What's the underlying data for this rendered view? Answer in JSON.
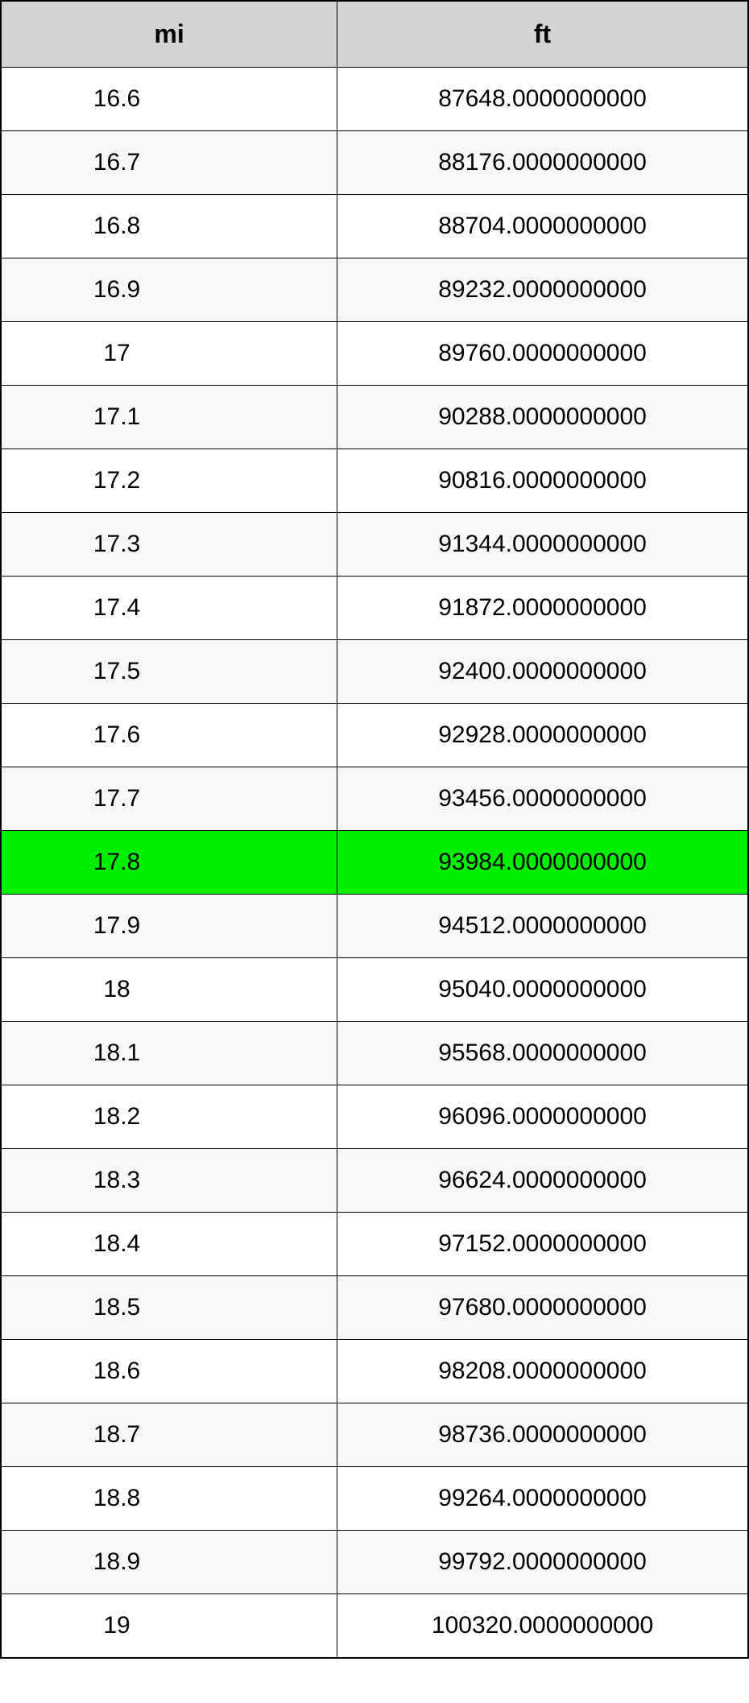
{
  "table": {
    "type": "table",
    "header_bg": "#d3d3d3",
    "border_color": "#000000",
    "row_even_bg": "#ffffff",
    "row_odd_bg": "#f7f7f7",
    "highlight_bg": "#00ee00",
    "font_size_header": 32,
    "font_size_cell": 30,
    "columns": [
      {
        "label": "mi",
        "key": "mi"
      },
      {
        "label": "ft",
        "key": "ft"
      }
    ],
    "highlight_index": 12,
    "rows": [
      {
        "mi": "16.6",
        "ft": "87648.0000000000"
      },
      {
        "mi": "16.7",
        "ft": "88176.0000000000"
      },
      {
        "mi": "16.8",
        "ft": "88704.0000000000"
      },
      {
        "mi": "16.9",
        "ft": "89232.0000000000"
      },
      {
        "mi": "17",
        "ft": "89760.0000000000"
      },
      {
        "mi": "17.1",
        "ft": "90288.0000000000"
      },
      {
        "mi": "17.2",
        "ft": "90816.0000000000"
      },
      {
        "mi": "17.3",
        "ft": "91344.0000000000"
      },
      {
        "mi": "17.4",
        "ft": "91872.0000000000"
      },
      {
        "mi": "17.5",
        "ft": "92400.0000000000"
      },
      {
        "mi": "17.6",
        "ft": "92928.0000000000"
      },
      {
        "mi": "17.7",
        "ft": "93456.0000000000"
      },
      {
        "mi": "17.8",
        "ft": "93984.0000000000"
      },
      {
        "mi": "17.9",
        "ft": "94512.0000000000"
      },
      {
        "mi": "18",
        "ft": "95040.0000000000"
      },
      {
        "mi": "18.1",
        "ft": "95568.0000000000"
      },
      {
        "mi": "18.2",
        "ft": "96096.0000000000"
      },
      {
        "mi": "18.3",
        "ft": "96624.0000000000"
      },
      {
        "mi": "18.4",
        "ft": "97152.0000000000"
      },
      {
        "mi": "18.5",
        "ft": "97680.0000000000"
      },
      {
        "mi": "18.6",
        "ft": "98208.0000000000"
      },
      {
        "mi": "18.7",
        "ft": "98736.0000000000"
      },
      {
        "mi": "18.8",
        "ft": "99264.0000000000"
      },
      {
        "mi": "18.9",
        "ft": "99792.0000000000"
      },
      {
        "mi": "19",
        "ft": "100320.0000000000"
      }
    ]
  }
}
